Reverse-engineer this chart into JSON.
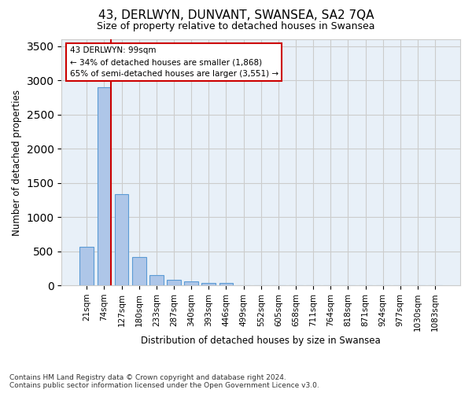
{
  "title": "43, DERLWYN, DUNVANT, SWANSEA, SA2 7QA",
  "subtitle": "Size of property relative to detached houses in Swansea",
  "xlabel": "Distribution of detached houses by size in Swansea",
  "ylabel": "Number of detached properties",
  "categories": [
    "21sqm",
    "74sqm",
    "127sqm",
    "180sqm",
    "233sqm",
    "287sqm",
    "340sqm",
    "393sqm",
    "446sqm",
    "499sqm",
    "552sqm",
    "605sqm",
    "658sqm",
    "711sqm",
    "764sqm",
    "818sqm",
    "871sqm",
    "924sqm",
    "977sqm",
    "1030sqm",
    "1083sqm"
  ],
  "values": [
    570,
    2900,
    1330,
    410,
    155,
    80,
    55,
    40,
    35,
    0,
    0,
    0,
    0,
    0,
    0,
    0,
    0,
    0,
    0,
    0,
    0
  ],
  "bar_color": "#aec6e8",
  "bar_edge_color": "#5b9bd5",
  "red_line_x": 1.3,
  "property_label": "43 DERLWYN: 99sqm",
  "annotation_line1": "← 34% of detached houses are smaller (1,868)",
  "annotation_line2": "65% of semi-detached houses are larger (3,551) →",
  "annotation_box_color": "#ffffff",
  "annotation_box_edge": "#cc0000",
  "red_line_color": "#cc0000",
  "ylim": [
    0,
    3600
  ],
  "yticks": [
    0,
    500,
    1000,
    1500,
    2000,
    2500,
    3000,
    3500
  ],
  "grid_color": "#cccccc",
  "bg_color": "#e8f0f8",
  "footer_line1": "Contains HM Land Registry data © Crown copyright and database right 2024.",
  "footer_line2": "Contains public sector information licensed under the Open Government Licence v3.0."
}
